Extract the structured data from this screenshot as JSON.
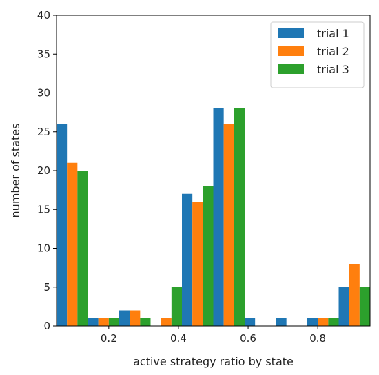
{
  "chart_data": {
    "type": "bar",
    "title": "",
    "xlabel": "active strategy ratio by state",
    "ylabel": "number of states",
    "xlim": [
      0.05,
      0.95
    ],
    "ylim": [
      0,
      40
    ],
    "xticks": [
      0.2,
      0.4,
      0.6,
      0.8
    ],
    "xtick_labels": [
      "0.2",
      "0.4",
      "0.6",
      "0.8"
    ],
    "yticks": [
      0,
      5,
      10,
      15,
      20,
      25,
      30,
      35,
      40
    ],
    "ytick_labels": [
      "0",
      "5",
      "10",
      "15",
      "20",
      "25",
      "30",
      "35",
      "40"
    ],
    "bin_edges": [
      0.05,
      0.14,
      0.23,
      0.32,
      0.41,
      0.5,
      0.59,
      0.68,
      0.77,
      0.86,
      0.95
    ],
    "grid": false,
    "legend_position": "top-right",
    "series": [
      {
        "name": "trial 1",
        "color": "#1f77b4",
        "values": [
          26,
          1,
          2,
          0,
          17,
          28,
          1,
          1,
          1,
          5
        ]
      },
      {
        "name": "trial 2",
        "color": "#ff7f0e",
        "values": [
          21,
          1,
          2,
          1,
          16,
          26,
          0,
          0,
          1,
          8
        ]
      },
      {
        "name": "trial 3",
        "color": "#2ca02c",
        "values": [
          20,
          1,
          1,
          5,
          18,
          28,
          0,
          0,
          1,
          5
        ]
      }
    ]
  }
}
